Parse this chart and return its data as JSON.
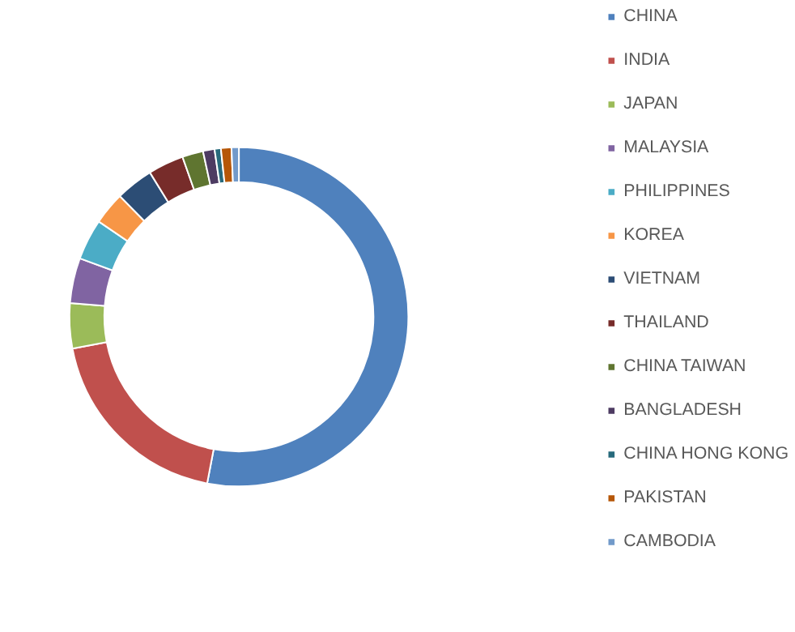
{
  "chart_data": {
    "type": "donut",
    "legend": "right",
    "categories": [
      "CHINA",
      "INDIA",
      "JAPAN",
      "MALAYSIA",
      "PHILIPPINES",
      "KOREA",
      "VIETNAM",
      "THAILAND",
      "CHINA TAIWAN",
      "BANGLADESH",
      "CHINA HONG KONG",
      "PAKISTAN",
      "CAMBODIA"
    ],
    "values": [
      53,
      19,
      4.3,
      4.3,
      3.9,
      3.1,
      3.6,
      3.4,
      2,
      1.1,
      0.6,
      1,
      0.7
    ],
    "colors": [
      "#4f81bd",
      "#c0504d",
      "#9bbb59",
      "#8064a2",
      "#4bacc6",
      "#f79646",
      "#2c4d75",
      "#772c2a",
      "#5f7530",
      "#4d3b62",
      "#276a7c",
      "#b65708",
      "#729aca"
    ]
  }
}
